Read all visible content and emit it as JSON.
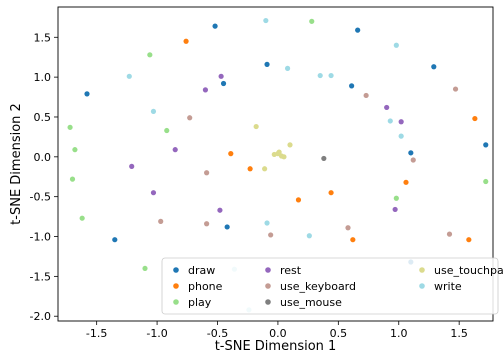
{
  "chart_data": {
    "type": "scatter",
    "title": "",
    "xlabel": "t-SNE Dimension 1",
    "ylabel": "t-SNE Dimension 2",
    "xlim": [
      -1.82,
      1.78
    ],
    "ylim": [
      -2.06,
      1.88
    ],
    "xticks": [
      -1.5,
      -1.0,
      -0.5,
      0.0,
      0.5,
      1.0,
      1.5
    ],
    "yticks": [
      -2.0,
      -1.5,
      -1.0,
      -0.5,
      0.0,
      0.5,
      1.0,
      1.5
    ],
    "grid": false,
    "legend_position": "lower-right",
    "series": [
      {
        "name": "draw",
        "color": "#1f77b4",
        "x": [
          -0.52,
          0.66,
          -1.58,
          -0.45,
          -0.09,
          1.29,
          0.61,
          1.1,
          1.72,
          -1.35,
          -0.42,
          1.1
        ],
        "y": [
          1.64,
          1.59,
          0.79,
          0.92,
          1.16,
          1.13,
          0.89,
          0.05,
          0.15,
          -1.04,
          -0.88,
          -1.32
        ]
      },
      {
        "name": "phone",
        "color": "#ff7f0e",
        "x": [
          -0.76,
          1.63,
          -0.39,
          -0.23,
          1.06,
          0.44,
          0.17,
          1.58,
          0.62
        ],
        "y": [
          1.45,
          0.48,
          0.04,
          -0.15,
          -0.32,
          -0.45,
          -0.54,
          -1.04,
          -1.04
        ]
      },
      {
        "name": "play",
        "color": "#98df8a",
        "x": [
          0.28,
          -1.06,
          -1.72,
          -1.68,
          -1.7,
          -1.62,
          -0.92,
          1.72,
          0.98,
          -1.1
        ],
        "y": [
          1.7,
          1.28,
          0.37,
          0.09,
          -0.28,
          -0.77,
          0.33,
          -0.31,
          -0.52,
          -1.4
        ]
      },
      {
        "name": "rest",
        "color": "#9467bd",
        "x": [
          -0.47,
          -0.6,
          -1.21,
          -0.85,
          -1.03,
          -0.48,
          0.9,
          1.02,
          0.97
        ],
        "y": [
          1.01,
          0.84,
          -0.12,
          0.09,
          -0.45,
          -0.67,
          0.62,
          0.44,
          -0.66
        ]
      },
      {
        "name": "use_keyboard",
        "color": "#c49c94",
        "x": [
          -0.73,
          0.73,
          1.47,
          1.12,
          -0.59,
          -0.97,
          -0.59,
          -0.06,
          0.58,
          1.42
        ],
        "y": [
          0.49,
          0.77,
          0.85,
          -0.04,
          -0.2,
          -0.81,
          -0.84,
          -0.98,
          -0.89,
          -0.97
        ]
      },
      {
        "name": "use_mouse",
        "color": "#7f7f7f",
        "x": [
          0.38
        ],
        "y": [
          -0.02
        ]
      },
      {
        "name": "use_touchpad",
        "color": "#dbdb8d",
        "x": [
          -0.18,
          0.1,
          0.0,
          0.03,
          0.05,
          0.01,
          -0.03,
          -0.11
        ],
        "y": [
          0.38,
          0.15,
          0.04,
          0.01,
          0.0,
          0.06,
          0.03,
          -0.15
        ]
      },
      {
        "name": "write",
        "color": "#9edae5",
        "x": [
          -0.1,
          0.98,
          -1.23,
          0.08,
          0.35,
          0.44,
          -1.03,
          0.93,
          1.02,
          -0.09,
          0.26,
          -0.36,
          -0.24
        ],
        "y": [
          1.71,
          1.4,
          1.01,
          1.11,
          1.02,
          1.02,
          0.57,
          0.45,
          0.26,
          -0.83,
          -0.99,
          -1.41,
          -1.92
        ]
      }
    ]
  }
}
